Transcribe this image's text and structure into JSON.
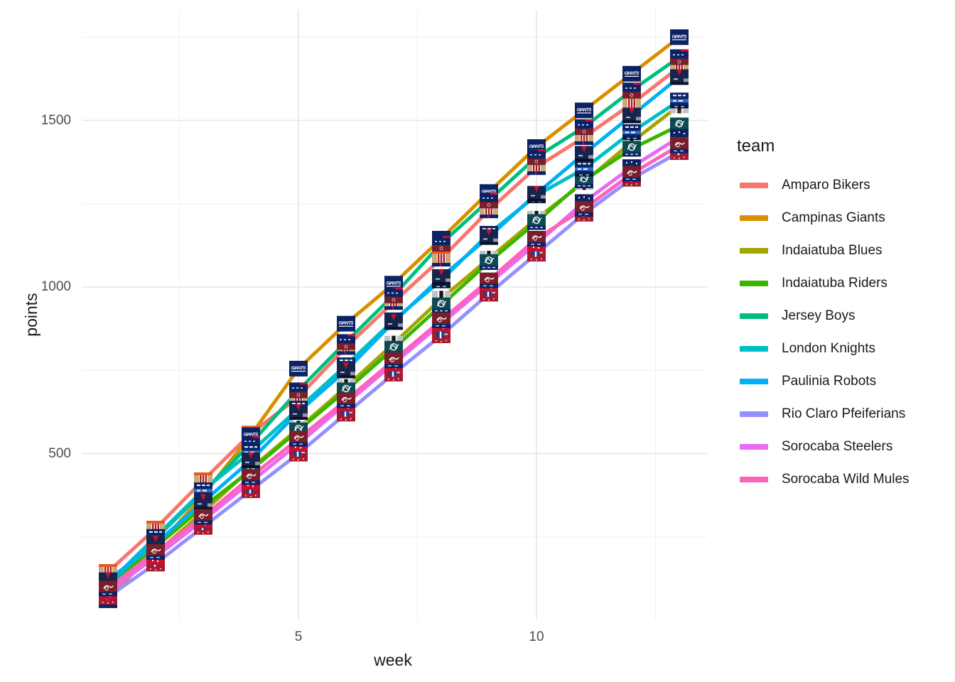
{
  "chart_data": {
    "type": "line",
    "title": "",
    "xlabel": "week",
    "ylabel": "points",
    "legend_title": "team",
    "legend_position": "right",
    "grid": "major+minor",
    "marker": "team-logo-image-at-each-point",
    "x": [
      1,
      2,
      3,
      4,
      5,
      6,
      7,
      8,
      9,
      10,
      11,
      12,
      13
    ],
    "xlim": [
      0.45,
      13.55
    ],
    "ylim": [
      0,
      1830
    ],
    "x_ticks": {
      "major": [
        5,
        10
      ],
      "minor": [
        2.5,
        7.5,
        12.5
      ]
    },
    "y_ticks": {
      "major": [
        500,
        1000,
        1500
      ],
      "minor": [
        250,
        750,
        1250,
        1750
      ]
    },
    "series": [
      {
        "name": "Amparo Bikers",
        "color": "#F8766D",
        "logo": {
          "icon_name": "striped-jersey-logo",
          "style": "jersey"
        },
        "values": [
          145,
          275,
          420,
          560,
          670,
          820,
          955,
          1085,
          1230,
          1360,
          1450,
          1550,
          1660
        ]
      },
      {
        "name": "Campinas Giants",
        "color": "#D89000",
        "logo": {
          "icon_name": "giants-wordmark-logo",
          "style": "wordmark",
          "word": "GIANTS"
        },
        "values": [
          60,
          215,
          375,
          555,
          755,
          890,
          1010,
          1145,
          1285,
          1420,
          1530,
          1640,
          1750
        ]
      },
      {
        "name": "Indaiatuba Blues",
        "color": "#A3A500",
        "logo": {
          "icon_name": "gray-black-stripe-logo",
          "style": "grayblock"
        },
        "values": [
          90,
          200,
          325,
          455,
          575,
          700,
          830,
          965,
          1085,
          1205,
          1315,
          1435,
          1545
        ]
      },
      {
        "name": "Indaiatuba Riders",
        "color": "#39B600",
        "logo": {
          "icon_name": "teal-knight-logo",
          "style": "knight"
        },
        "values": [
          105,
          220,
          340,
          450,
          570,
          690,
          815,
          945,
          1075,
          1195,
          1320,
          1415,
          1485
        ]
      },
      {
        "name": "Jersey Boys",
        "color": "#00BF7D",
        "logo": {
          "icon_name": "navy-maroon-block-logo",
          "style": "navymaroon"
        },
        "values": [
          100,
          245,
          385,
          530,
          690,
          835,
          975,
          1130,
          1260,
          1390,
          1480,
          1590,
          1690
        ]
      },
      {
        "name": "London Knights",
        "color": "#00BFC4",
        "logo": {
          "icon_name": "navy-crest-logo",
          "style": "crest"
        },
        "values": [
          110,
          250,
          390,
          505,
          635,
          765,
          900,
          1020,
          1160,
          1275,
          1355,
          1465,
          1560
        ]
      },
      {
        "name": "Paulinia Robots",
        "color": "#00B0F6",
        "logo": {
          "icon_name": "navy-red-collar-logo",
          "style": "robot"
        },
        "values": [
          120,
          230,
          355,
          480,
          625,
          750,
          895,
          1030,
          1150,
          1280,
          1400,
          1515,
          1630
        ]
      },
      {
        "name": "Rio Claro Pfeiferians",
        "color": "#9590FF",
        "logo": {
          "icon_name": "red-blue-helmet-logo",
          "style": "helmet"
        },
        "values": [
          70,
          170,
          280,
          390,
          500,
          620,
          740,
          855,
          980,
          1100,
          1220,
          1325,
          1405
        ]
      },
      {
        "name": "Sorocaba Steelers",
        "color": "#E76BF3",
        "logo": {
          "icon_name": "navy-red-speckle-logo",
          "style": "star"
        },
        "values": [
          85,
          190,
          300,
          415,
          530,
          650,
          770,
          890,
          1010,
          1130,
          1255,
          1360,
          1450
        ]
      },
      {
        "name": "Sorocaba Wild Mules",
        "color": "#FF62BC",
        "logo": {
          "icon_name": "maroon-emblem-logo",
          "style": "mule"
        },
        "values": [
          95,
          205,
          310,
          430,
          545,
          660,
          780,
          900,
          1020,
          1145,
          1235,
          1340,
          1425
        ]
      }
    ],
    "style": {
      "background": "#ffffff",
      "grid_major_color": "#e6e6e6",
      "grid_minor_color": "#efefef",
      "tick_label_color": "#4d4d4d",
      "axis_title_color": "#1a1a1a",
      "line_width": 5
    }
  }
}
